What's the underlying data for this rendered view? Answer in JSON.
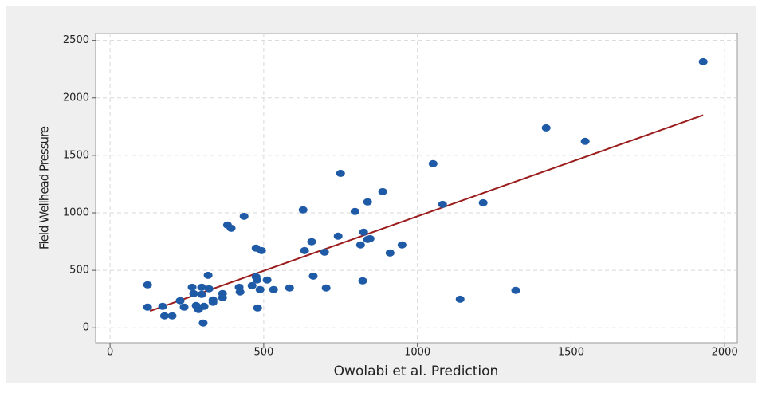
{
  "chart_data": {
    "type": "scatter",
    "x_label": "Owolabi et al. Prediction",
    "y_label": "Field Wellhead Pressure",
    "x": [
      122,
      122,
      171,
      177,
      202,
      228,
      241,
      267,
      272,
      280,
      288,
      298,
      298,
      303,
      306,
      319,
      322,
      335,
      335,
      366,
      366,
      382,
      394,
      420,
      423,
      436,
      462,
      475,
      475,
      478,
      480,
      488,
      493,
      511,
      532,
      584,
      628,
      633,
      656,
      661,
      698,
      703,
      742,
      750,
      797,
      815,
      825,
      822,
      838,
      838,
      846,
      887,
      911,
      950,
      1051,
      1082,
      1139,
      1214,
      1320,
      1419,
      1546,
      1930
    ],
    "values": [
      374,
      180,
      187,
      104,
      104,
      236,
      180,
      353,
      298,
      194,
      159,
      353,
      291,
      42,
      187,
      457,
      340,
      243,
      222,
      298,
      263,
      894,
      866,
      353,
      312,
      970,
      367,
      693,
      444,
      416,
      173,
      333,
      672,
      416,
      333,
      347,
      1026,
      672,
      749,
      450,
      658,
      347,
      797,
      1344,
      1012,
      721,
      832,
      409,
      1095,
      769,
      776,
      1185,
      651,
      721,
      1428,
      1074,
      249,
      1088,
      326,
      1739,
      1622,
      2315
    ],
    "color": "#1f5aa6",
    "fit_line": {
      "x": [
        130,
        1930
      ],
      "y": [
        146,
        1850
      ],
      "color": "#9b1c1c"
    },
    "xlim": [
      -47,
      2041
    ],
    "ylim": [
      -130,
      2560
    ],
    "xticks": [
      0,
      500,
      1000,
      1500,
      2000
    ],
    "yticks": [
      0,
      500,
      1000,
      1500,
      2000,
      2500
    ],
    "grid": true
  }
}
